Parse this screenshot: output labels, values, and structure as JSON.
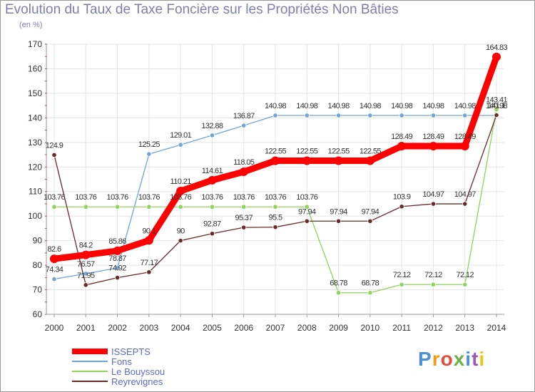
{
  "title": "Evolution du Taux de Taxe Foncière sur les Propriétés Non Bâties",
  "subtitle": "(en %)",
  "logo": "Proxiti",
  "chart_data": {
    "type": "line",
    "title": "Evolution du Taux de Taxe Foncière sur les Propriétés Non Bâties",
    "ylabel": "(en %)",
    "xlabel": "",
    "ylim": [
      60,
      170
    ],
    "yticks": [
      60,
      70,
      80,
      90,
      100,
      110,
      120,
      130,
      140,
      150,
      160,
      170
    ],
    "x": [
      "2000",
      "2001",
      "2002",
      "2003",
      "2004",
      "2005",
      "2006",
      "2007",
      "2008",
      "2009",
      "2010",
      "2011",
      "2012",
      "2013",
      "2014"
    ],
    "grid": true,
    "legend_position": "bottom-left",
    "series": [
      {
        "name": "ISSEPTS",
        "color": "#ff0000",
        "values": [
          82.6,
          84.2,
          85.86,
          90.1,
          110.21,
          114.61,
          118.05,
          122.55,
          122.55,
          122.55,
          122.55,
          128.49,
          128.49,
          128.49,
          164.83
        ],
        "labels": [
          "82.6",
          "84.2",
          "85.86",
          "90.1",
          "110.21",
          "114.61",
          "118.05",
          "122.55",
          "122.55",
          "122.55",
          "122.55",
          "128.49",
          "128.49",
          "128.49",
          "164.83"
        ]
      },
      {
        "name": "Fons",
        "color": "#6fa5d8",
        "values": [
          74.34,
          76.57,
          78.87,
          125.25,
          129.01,
          132.88,
          136.87,
          140.98,
          140.98,
          140.98,
          140.98,
          140.98,
          140.98,
          140.98,
          140.98
        ],
        "labels": [
          "74.34",
          "76.57",
          "78.87",
          "125.25",
          "129.01",
          "132.88",
          "136.87",
          "140.98",
          "140.98",
          "140.98",
          "140.98",
          "140.98",
          "140.98",
          "140.98",
          "140.98"
        ]
      },
      {
        "name": "Le Bouyssou",
        "color": "#8fd45a",
        "values": [
          103.76,
          103.76,
          103.76,
          103.76,
          103.76,
          103.76,
          103.76,
          103.76,
          103.76,
          68.78,
          68.78,
          72.12,
          72.12,
          72.12,
          143.41
        ],
        "labels": [
          "103.76",
          "103.76",
          "103.76",
          "103.76",
          "103.76",
          "103.76",
          "103.76",
          "103.76",
          "103.76",
          "68.78",
          "68.78",
          "72.12",
          "72.12",
          "72.12",
          "143.41"
        ]
      },
      {
        "name": "Reyrevignes",
        "color": "#6b2a2a",
        "values": [
          124.9,
          71.95,
          74.92,
          77.17,
          90,
          92.87,
          95.37,
          95.5,
          97.94,
          97.94,
          97.94,
          103.9,
          104.97,
          104.97,
          141.1
        ],
        "labels": [
          "124.9",
          "71.95",
          "74.92",
          "77.17",
          "90",
          "92.87",
          "95.37",
          "95.5",
          "97.94",
          "97.94",
          "97.94",
          "103.9",
          "104.97",
          "104.97",
          "141.1"
        ]
      }
    ]
  }
}
